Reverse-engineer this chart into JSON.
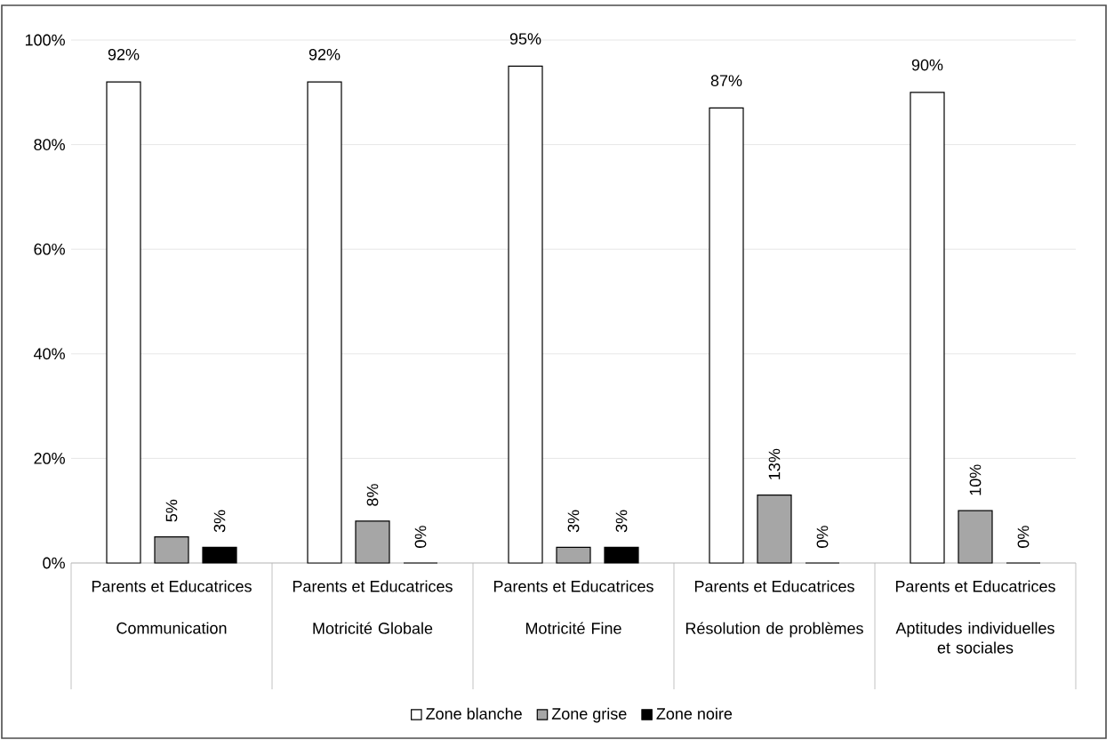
{
  "chart_data": {
    "type": "bar",
    "categories": [
      "Communication",
      "Motricité Globale",
      "Motricité Fine",
      "Résolution de problèmes",
      "Aptitudes individuelles et sociales"
    ],
    "series": [
      {
        "name": "Zone blanche",
        "color": "#ffffff",
        "values": [
          92,
          92,
          95,
          87,
          90
        ],
        "value_labels": [
          "92%",
          "92%",
          "95%",
          "87%",
          "90%"
        ]
      },
      {
        "name": "Zone grise",
        "color": "#a6a6a6",
        "values": [
          5,
          8,
          3,
          13,
          10
        ],
        "value_labels": [
          "5%",
          "8%",
          "3%",
          "13%",
          "10%"
        ]
      },
      {
        "name": "Zone noire",
        "color": "#000000",
        "values": [
          3,
          0,
          3,
          0,
          0
        ],
        "value_labels": [
          "3%",
          "0%",
          "3%",
          "0%",
          "0%"
        ]
      }
    ],
    "annotations": [
      "Parents et Educatrices",
      "Parents et Educatrices",
      "Parents et Educatrices",
      "Parents et Educatrices",
      "Parents et Educatrices"
    ],
    "ylim": [
      0,
      100
    ],
    "yticks": [
      {
        "value": 0,
        "label": "0%"
      },
      {
        "value": 20,
        "label": "20%"
      },
      {
        "value": 40,
        "label": "40%"
      },
      {
        "value": 60,
        "label": "60%"
      },
      {
        "value": 80,
        "label": "80%"
      },
      {
        "value": 100,
        "label": "100%"
      }
    ],
    "grid": "y",
    "legend": "bottom"
  }
}
